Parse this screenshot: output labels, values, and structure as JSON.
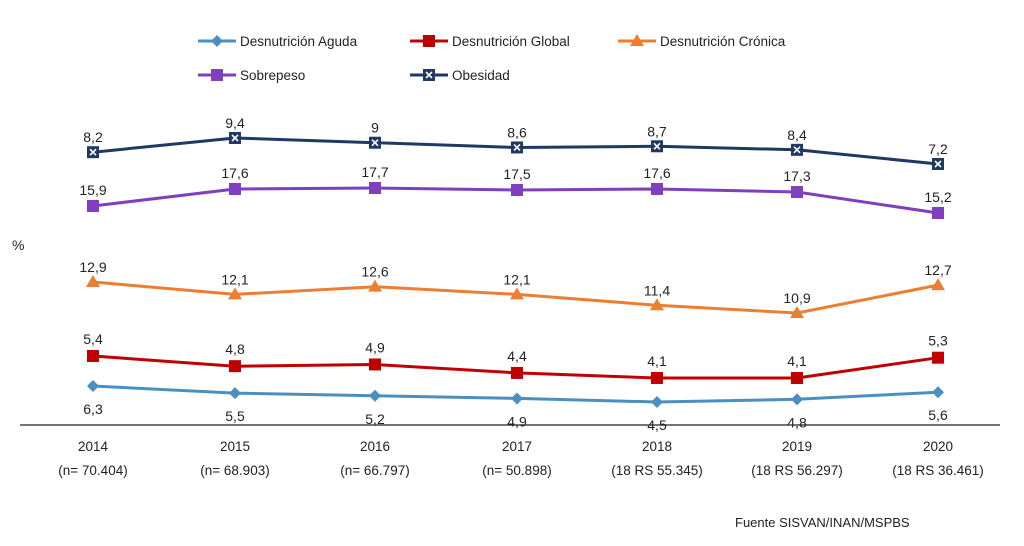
{
  "chart_data": {
    "type": "line",
    "title": "",
    "xlabel": "",
    "ylabel": "%",
    "categories": [
      {
        "year": "2014",
        "sub": "(n= 70.404)"
      },
      {
        "year": "2015",
        "sub": "(n= 68.903)"
      },
      {
        "year": "2016",
        "sub": "(n= 66.797)"
      },
      {
        "year": "2017",
        "sub": "(n= 50.898)"
      },
      {
        "year": "2018",
        "sub": "(18 RS 55.345)"
      },
      {
        "year": "2019",
        "sub": "(18 RS 56.297)"
      },
      {
        "year": "2020",
        "sub": "(18 RS 36.461)"
      }
    ],
    "series": [
      {
        "name": "Desnutrición  Aguda",
        "color": "#4a8fbf",
        "marker": "diamond",
        "values": [
          6.3,
          5.5,
          5.2,
          4.9,
          4.5,
          4.8,
          5.6
        ],
        "labels": [
          "6,3",
          "5,5",
          "5,2",
          "4,9",
          "4,5",
          "4,8",
          "5,6"
        ]
      },
      {
        "name": "Desnutrición  Global",
        "color": "#c00000",
        "marker": "square",
        "values": [
          5.4,
          4.8,
          4.9,
          4.4,
          4.1,
          4.1,
          5.3
        ],
        "labels": [
          "5,4",
          "4,8",
          "4,9",
          "4,4",
          "4,1",
          "4,1",
          "5,3"
        ]
      },
      {
        "name": "Desnutrición Crónica",
        "color": "#ed7d31",
        "marker": "triangle",
        "values": [
          12.9,
          12.1,
          12.6,
          12.1,
          11.4,
          10.9,
          12.7
        ],
        "labels": [
          "12,9",
          "12,1",
          "12,6",
          "12,1",
          "11,4",
          "10,9",
          "12,7"
        ]
      },
      {
        "name": "Sobrepeso",
        "color": "#7f3fbf",
        "marker": "square",
        "values": [
          15.9,
          17.6,
          17.7,
          17.5,
          17.6,
          17.3,
          15.2
        ],
        "labels": [
          "15,9",
          "17,6",
          "17,7",
          "17,5",
          "17,6",
          "17,3",
          "15,2"
        ]
      },
      {
        "name": "Obesidad",
        "color": "#1f3864",
        "marker": "xsquare",
        "values": [
          8.2,
          9.4,
          9,
          8.6,
          8.7,
          8.4,
          7.2
        ],
        "labels": [
          "8,2",
          "9,4",
          "9",
          "8,6",
          "8,7",
          "8,4",
          "7,2"
        ]
      }
    ],
    "grid": false,
    "legend_position": "top",
    "note": "Fuente SISVAN/INAN/MSPBS"
  }
}
